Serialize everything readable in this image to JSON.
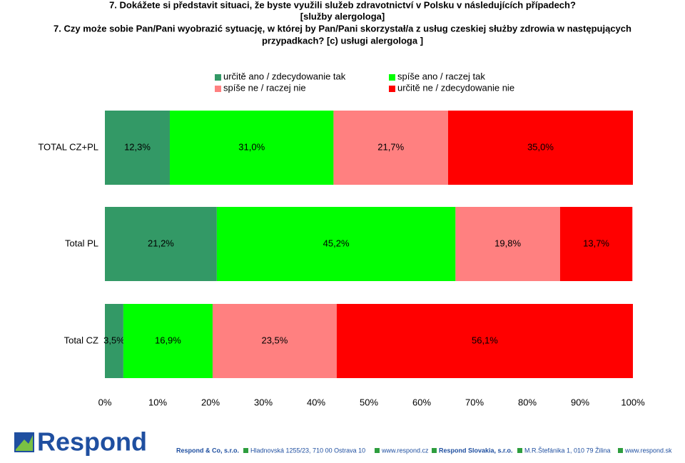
{
  "chart_data": {
    "type": "stacked_bar_horizontal",
    "title_lines": [
      "7. Dokážete si představit situaci, že byste využili služeb zdravotnictví v Polsku v následujících případech?",
      "[služby alergologa]",
      "7. Czy może sobie Pan/Pani wyobrazić sytuację, w której by Pan/Pani skorzystał/a z usług czeskiej służby zdrowia w następujących",
      "przypadkach? [c) usługi alergologa ]"
    ],
    "categories": [
      "TOTAL CZ+PL",
      "Total PL",
      "Total CZ"
    ],
    "series": [
      {
        "name": "určitě ano / zdecydowanie tak",
        "color": "#339966",
        "values": [
          12.3,
          21.2,
          3.5
        ],
        "value_labels": [
          "12,3%",
          "21,2%",
          "3,5%"
        ]
      },
      {
        "name": "spíše ano / raczej tak",
        "color": "#00ff00",
        "values": [
          31.0,
          45.2,
          16.9
        ],
        "value_labels": [
          "31,0%",
          "45,2%",
          "16,9%"
        ]
      },
      {
        "name": "spíše ne / raczej nie",
        "color": "#ff8080",
        "values": [
          21.7,
          19.8,
          23.5
        ],
        "value_labels": [
          "21,7%",
          "19,8%",
          "23,5%"
        ]
      },
      {
        "name": "určitě ne / zdecydowanie nie",
        "color": "#ff0000",
        "values": [
          35.0,
          13.7,
          56.1
        ],
        "value_labels": [
          "35,0%",
          "13,7%",
          "56,1%"
        ]
      }
    ],
    "xlim": [
      0,
      100
    ],
    "xticks": [
      {
        "value": 0,
        "label": "0%"
      },
      {
        "value": 10,
        "label": "10%"
      },
      {
        "value": 20,
        "label": "20%"
      },
      {
        "value": 30,
        "label": "30%"
      },
      {
        "value": 40,
        "label": "40%"
      },
      {
        "value": 50,
        "label": "50%"
      },
      {
        "value": 60,
        "label": "60%"
      },
      {
        "value": 70,
        "label": "70%"
      },
      {
        "value": 80,
        "label": "80%"
      },
      {
        "value": 90,
        "label": "90%"
      },
      {
        "value": 100,
        "label": "100%"
      }
    ],
    "grid": false
  },
  "footer": {
    "logo": "Respond",
    "items": [
      "Respond & Co, s.r.o.",
      "Hladnovská 1255/23, 710 00 Ostrava 10",
      "www.respond.cz",
      "Respond Slovakia, s.r.o.",
      "M.R.Štefánika 1, 010 79  Žilina",
      "www.respond.sk"
    ]
  }
}
